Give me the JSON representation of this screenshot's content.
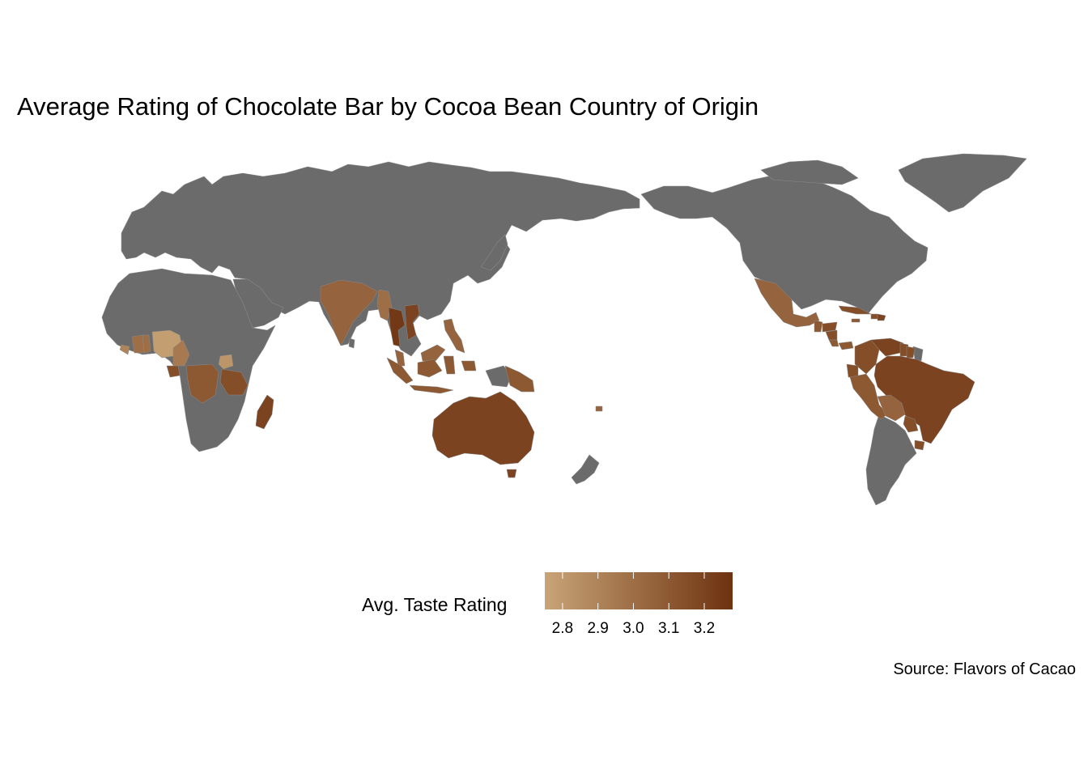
{
  "title": "Average Rating of Chocolate Bar by Cocoa Bean Country of Origin",
  "caption": "Source: Flavors of Cacao",
  "legend": {
    "title": "Avg. Taste Rating",
    "ticks": [
      "2.8",
      "2.9",
      "3.0",
      "3.1",
      "3.2"
    ],
    "range": [
      2.75,
      3.28
    ],
    "low_color": "#c8a477",
    "high_color": "#6e3210"
  },
  "colors": {
    "land_no_data": "#6b6b6b",
    "border": "#9a9a9a",
    "background": "#ffffff"
  },
  "chart_data": {
    "type": "choropleth",
    "projection": "Pacific-centred world map",
    "fill_variable": "Avg. Taste Rating",
    "regions": [
      {
        "name": "Nigeria",
        "value": 2.78
      },
      {
        "name": "Uganda",
        "value": 2.82
      },
      {
        "name": "Ghana",
        "value": 3.0
      },
      {
        "name": "Côte d'Ivoire",
        "value": 3.0
      },
      {
        "name": "Liberia",
        "value": 2.9
      },
      {
        "name": "Cameroon",
        "value": 2.95
      },
      {
        "name": "Gabon",
        "value": 3.15
      },
      {
        "name": "DR Congo",
        "value": 3.1
      },
      {
        "name": "Tanzania",
        "value": 3.15
      },
      {
        "name": "Madagascar",
        "value": 3.2
      },
      {
        "name": "India",
        "value": 3.05
      },
      {
        "name": "Myanmar",
        "value": 3.0
      },
      {
        "name": "Thailand",
        "value": 3.25
      },
      {
        "name": "Vietnam",
        "value": 3.2
      },
      {
        "name": "Malaysia",
        "value": 3.05
      },
      {
        "name": "Philippines",
        "value": 3.05
      },
      {
        "name": "Indonesia",
        "value": 3.1
      },
      {
        "name": "Papua New Guinea",
        "value": 3.1
      },
      {
        "name": "Fiji",
        "value": 3.05
      },
      {
        "name": "Australia",
        "value": 3.2
      },
      {
        "name": "Mexico",
        "value": 3.05
      },
      {
        "name": "Guatemala",
        "value": 3.1
      },
      {
        "name": "Honduras",
        "value": 3.15
      },
      {
        "name": "Nicaragua",
        "value": 3.15
      },
      {
        "name": "Costa Rica",
        "value": 3.1
      },
      {
        "name": "Panama",
        "value": 3.1
      },
      {
        "name": "Cuba",
        "value": 3.15
      },
      {
        "name": "Haiti",
        "value": 3.15
      },
      {
        "name": "Dominican Republic",
        "value": 3.2
      },
      {
        "name": "Jamaica",
        "value": 3.1
      },
      {
        "name": "Colombia",
        "value": 3.15
      },
      {
        "name": "Venezuela",
        "value": 3.2
      },
      {
        "name": "Guyana",
        "value": 3.15
      },
      {
        "name": "Suriname",
        "value": 3.15
      },
      {
        "name": "Ecuador",
        "value": 3.15
      },
      {
        "name": "Peru",
        "value": 3.1
      },
      {
        "name": "Brazil",
        "value": 3.2
      },
      {
        "name": "Bolivia",
        "value": 3.05
      },
      {
        "name": "Paraguay",
        "value": 3.15
      },
      {
        "name": "Uruguay",
        "value": 3.15
      }
    ]
  }
}
